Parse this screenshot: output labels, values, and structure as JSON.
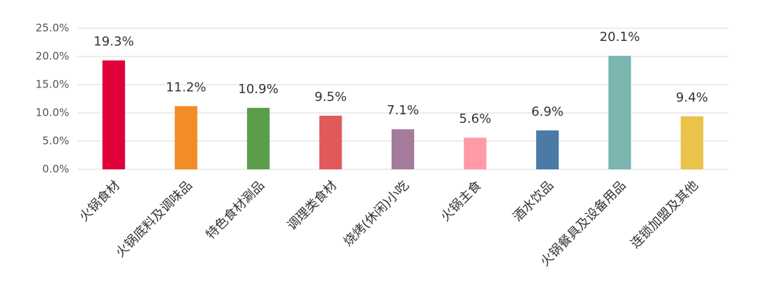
{
  "chart_data": {
    "type": "bar",
    "categories": [
      "火锅食材",
      "火锅底料及调味品",
      "特色食材涮品",
      "调理类食材",
      "烧烤(休闲)小吃",
      "火锅主食",
      "酒水饮品",
      "火锅餐具及设备用品",
      "连锁加盟及其他"
    ],
    "values": [
      19.3,
      11.2,
      10.9,
      9.5,
      7.1,
      5.6,
      6.9,
      20.1,
      9.4
    ],
    "value_labels": [
      "19.3%",
      "11.2%",
      "10.9%",
      "9.5%",
      "7.1%",
      "5.6%",
      "6.9%",
      "20.1%",
      "9.4%"
    ],
    "colors": [
      "#e0003a",
      "#f28c28",
      "#5a9e4b",
      "#e05a5a",
      "#a57b9b",
      "#ff9aa6",
      "#4a7aa5",
      "#7ab5b0",
      "#e9c34a"
    ],
    "ylim": [
      0,
      25
    ],
    "yticks": [
      {
        "value": 0,
        "label": "0.0%"
      },
      {
        "value": 5,
        "label": "5.0%"
      },
      {
        "value": 10,
        "label": "10.0%"
      },
      {
        "value": 15,
        "label": "15.0%"
      },
      {
        "value": 20,
        "label": "20.0%"
      },
      {
        "value": 25,
        "label": "25.0%"
      }
    ],
    "grid": true
  }
}
